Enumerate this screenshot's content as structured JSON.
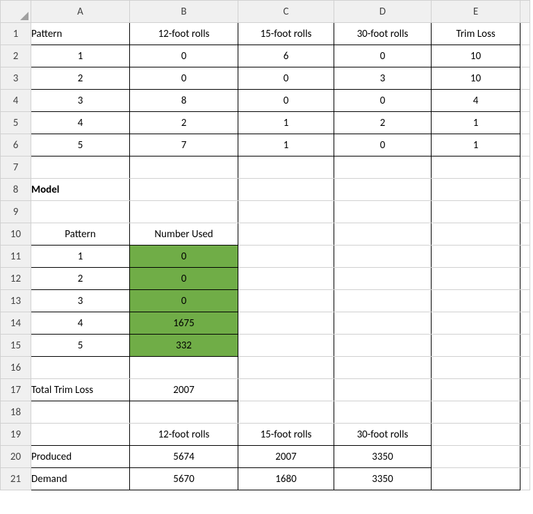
{
  "colors": {
    "green_fill": "#70ad47",
    "header_bg": "#f0f0f0",
    "grid_light": "#d0d0d0",
    "border_black": "#000000",
    "text": "#000000"
  },
  "columns": [
    "A",
    "B",
    "C",
    "D",
    "E"
  ],
  "row_numbers": [
    "1",
    "2",
    "3",
    "4",
    "5",
    "6",
    "7",
    "8",
    "9",
    "10",
    "11",
    "12",
    "13",
    "14",
    "15",
    "16",
    "17",
    "18",
    "19",
    "20",
    "21"
  ],
  "labels": {
    "pattern": "Pattern",
    "col12": "12-foot rolls",
    "col15": "15-foot rolls",
    "col30": "30-foot rolls",
    "trim_loss": "Trim Loss",
    "model": "Model",
    "number_used": "Number Used",
    "total_trim_loss": "Total Trim Loss",
    "produced": "Produced",
    "demand": "Demand"
  },
  "patterns_table": {
    "rows": [
      {
        "pattern": "1",
        "c12": "0",
        "c15": "6",
        "c30": "0",
        "trim": "10"
      },
      {
        "pattern": "2",
        "c12": "0",
        "c15": "0",
        "c30": "3",
        "trim": "10"
      },
      {
        "pattern": "3",
        "c12": "8",
        "c15": "0",
        "c30": "0",
        "trim": "4"
      },
      {
        "pattern": "4",
        "c12": "2",
        "c15": "1",
        "c30": "2",
        "trim": "1"
      },
      {
        "pattern": "5",
        "c12": "7",
        "c15": "1",
        "c30": "0",
        "trim": "1"
      }
    ]
  },
  "number_used": {
    "rows": [
      {
        "pattern": "1",
        "used": "0"
      },
      {
        "pattern": "2",
        "used": "0"
      },
      {
        "pattern": "3",
        "used": "0"
      },
      {
        "pattern": "4",
        "used": "1675"
      },
      {
        "pattern": "5",
        "used": "332"
      }
    ]
  },
  "total_trim_loss_value": "2007",
  "produced": {
    "c12": "5674",
    "c15": "2007",
    "c30": "3350"
  },
  "demand": {
    "c12": "5670",
    "c15": "1680",
    "c30": "3350"
  }
}
